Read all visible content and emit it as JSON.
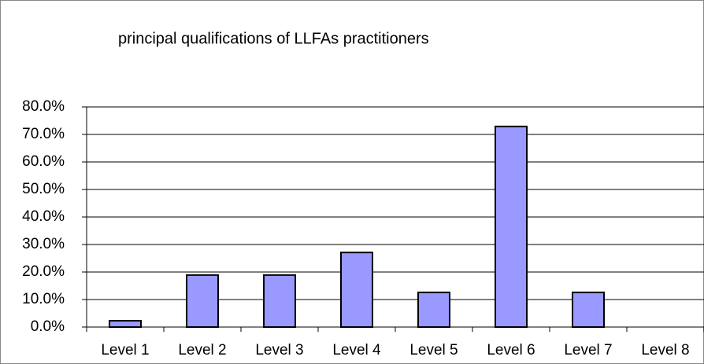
{
  "chart_data": {
    "type": "bar",
    "title": "principal qualifications of LLFAs practitioners",
    "categories": [
      "Level 1",
      "Level 2",
      "Level 3",
      "Level 4",
      "Level 5",
      "Level 6",
      "Level 7",
      "Level 8"
    ],
    "values": [
      2.3,
      18.9,
      18.9,
      27.1,
      12.6,
      72.9,
      12.6,
      0
    ],
    "color": "#9999ff",
    "ylim": [
      0,
      80
    ],
    "yticks": [
      {
        "value": 0,
        "label": "0.0%"
      },
      {
        "value": 10,
        "label": "10.0%"
      },
      {
        "value": 20,
        "label": "20.0%"
      },
      {
        "value": 30,
        "label": "30.0%"
      },
      {
        "value": 40,
        "label": "40.0%"
      },
      {
        "value": 50,
        "label": "50.0%"
      },
      {
        "value": 60,
        "label": "60.0%"
      },
      {
        "value": 70,
        "label": "70.0%"
      },
      {
        "value": 80,
        "label": "80.0%"
      }
    ],
    "grid": true
  }
}
